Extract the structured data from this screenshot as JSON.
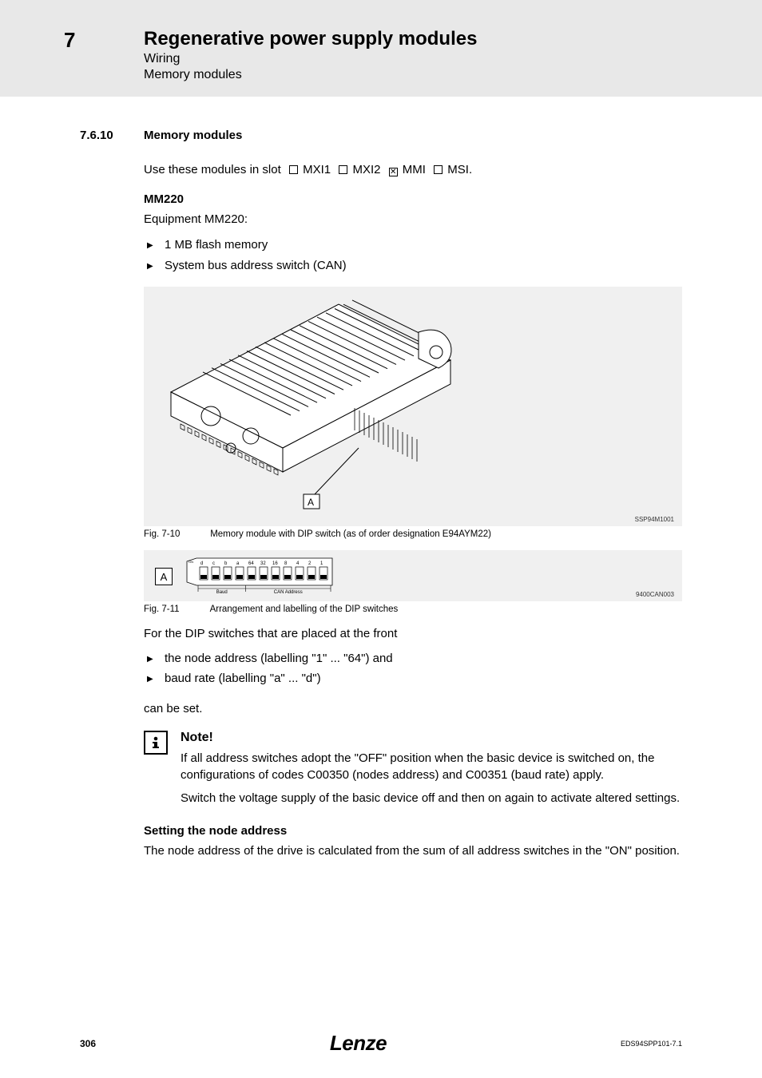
{
  "header": {
    "chapter_number": "7",
    "title": "Regenerative power supply modules",
    "subtitle1": "Wiring",
    "subtitle2": "Memory modules"
  },
  "section": {
    "number": "7.6.10",
    "title": "Memory modules"
  },
  "intro_text_prefix": "Use these modules in slot",
  "slots": [
    {
      "label": "MXI1",
      "checked": false
    },
    {
      "label": "MXI2",
      "checked": false
    },
    {
      "label": "MMI",
      "checked": true
    },
    {
      "label": "MSI",
      "checked": false
    }
  ],
  "mm220": {
    "heading": "MM220",
    "equip_line": "Equipment MM220:",
    "bullets": [
      "1 MB flash memory",
      "System bus address switch (CAN)"
    ]
  },
  "figure1": {
    "image_code": "SSP94M1001",
    "caption_label": "Fig. 7-10",
    "caption_text": "Memory module with DIP switch (as of order designation E94AYM22)",
    "letter": "A",
    "background": "#f0f0f0",
    "line_color": "#000000",
    "fill_color": "#ffffff"
  },
  "figure2": {
    "image_code": "9400CAN003",
    "caption_label": "Fig. 7-11",
    "caption_text": "Arrangement and labelling of the DIP switches",
    "letter": "A",
    "background": "#f0f0f0",
    "dip": {
      "on_label": "ON",
      "baud_labels": [
        "d",
        "c",
        "b",
        "a"
      ],
      "addr_labels": [
        "64",
        "32",
        "16",
        "8",
        "4",
        "2",
        "1"
      ],
      "group_left_label": "Baud",
      "group_right_label": "CAN Address",
      "switch_count": 11,
      "switch_width": 10,
      "switch_gap": 5,
      "font_size_labels": 6,
      "font_size_group": 6,
      "line_color": "#000000",
      "fill_color": "#ffffff"
    }
  },
  "dip_text": {
    "lead": "For the DIP switches that are placed at the front",
    "bullets": [
      "the node address (labelling \"1\" ... \"64\") and",
      "baud rate (labelling \"a\" ... \"d\")"
    ],
    "trail": "can be set."
  },
  "note": {
    "title": "Note!",
    "para1": "If all address switches adopt the \"OFF\" position when the basic device is switched on, the configurations of codes C00350 (nodes address) and C00351 (baud rate) apply.",
    "para2": "Switch the voltage supply of the basic device off and then on again to activate altered settings."
  },
  "node_addr": {
    "heading": "Setting the node address",
    "text": "The node address of the drive is calculated from the sum of all address switches in the \"ON\" position."
  },
  "footer": {
    "page": "306",
    "brand": "Lenze",
    "doc": "EDS94SPP101-7.1"
  }
}
